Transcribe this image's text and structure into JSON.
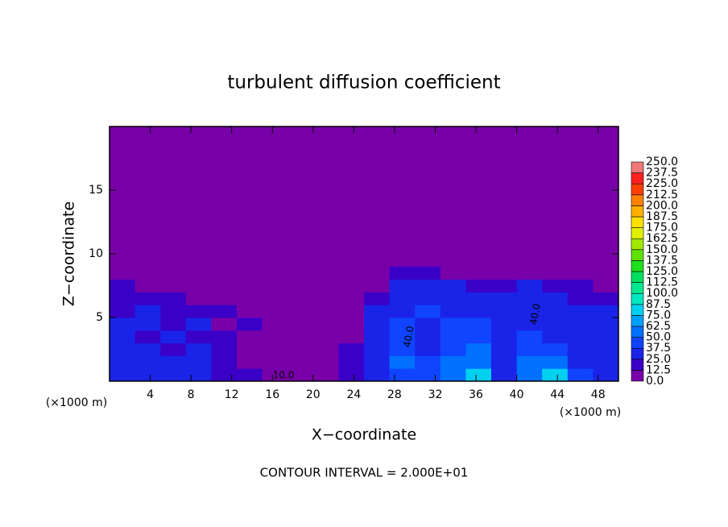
{
  "chart_data": {
    "type": "contour",
    "title": "turbulent diffusion coefficient",
    "xlabel": "X−coordinate",
    "ylabel": "Z−coordinate",
    "xunit": "(×1000 m)",
    "yunit": "(×1000 m)",
    "footer": "CONTOUR INTERVAL = 2.000E+01",
    "xlim": [
      0,
      50
    ],
    "ylim": [
      0,
      20
    ],
    "xticks": [
      4,
      8,
      12,
      16,
      20,
      24,
      28,
      32,
      36,
      40,
      44,
      48
    ],
    "yticks": [
      5,
      10,
      15
    ],
    "x": [
      1.25,
      3.75,
      6.25,
      8.75,
      11.25,
      13.75,
      16.25,
      18.75,
      21.25,
      23.75,
      26.25,
      28.75,
      31.25,
      33.75,
      36.25,
      38.75,
      41.25,
      43.75,
      46.25,
      48.75
    ],
    "y": [
      0.5,
      1.5,
      2.5,
      3.5,
      4.5,
      5.5,
      6.5,
      7.5,
      8.5
    ],
    "values": [
      [
        30,
        28,
        25,
        30,
        20,
        15,
        10,
        8,
        12,
        20,
        30,
        45,
        40,
        60,
        75,
        30,
        60,
        80,
        40,
        35
      ],
      [
        30,
        25,
        30,
        25,
        20,
        12,
        8,
        10,
        10,
        20,
        35,
        50,
        40,
        55,
        60,
        35,
        50,
        60,
        30,
        30
      ],
      [
        25,
        30,
        20,
        25,
        15,
        10,
        8,
        5,
        5,
        15,
        35,
        45,
        35,
        45,
        50,
        35,
        45,
        40,
        30,
        35
      ],
      [
        30,
        20,
        25,
        15,
        20,
        8,
        12,
        5,
        3,
        10,
        30,
        40,
        35,
        40,
        45,
        30,
        40,
        35,
        30,
        30
      ],
      [
        25,
        28,
        15,
        25,
        10,
        15,
        8,
        10,
        3,
        8,
        28,
        40,
        35,
        40,
        40,
        30,
        35,
        30,
        28,
        25
      ],
      [
        20,
        25,
        20,
        15,
        20,
        10,
        5,
        8,
        3,
        12,
        28,
        35,
        38,
        35,
        35,
        30,
        35,
        28,
        25,
        25
      ],
      [
        20,
        15,
        20,
        10,
        5,
        5,
        3,
        3,
        3,
        10,
        20,
        30,
        30,
        35,
        28,
        25,
        30,
        25,
        22,
        20
      ],
      [
        15,
        10,
        8,
        5,
        3,
        3,
        2,
        2,
        2,
        5,
        12,
        25,
        30,
        28,
        20,
        15,
        25,
        20,
        15,
        12
      ],
      [
        2,
        2,
        2,
        1,
        1,
        1,
        1,
        1,
        1,
        2,
        5,
        15,
        18,
        12,
        5,
        3,
        10,
        5,
        3,
        2
      ]
    ],
    "levels": [
      {
        "value": 0,
        "label": "0.0"
      },
      {
        "value": 12.5,
        "label": "12.5"
      },
      {
        "value": 25,
        "label": "25.0"
      },
      {
        "value": 37.5,
        "label": "37.5"
      },
      {
        "value": 50,
        "label": "50.0"
      },
      {
        "value": 62.5,
        "label": "62.5"
      },
      {
        "value": 75,
        "label": "75.0"
      },
      {
        "value": 87.5,
        "label": "87.5"
      },
      {
        "value": 100,
        "label": "100.0"
      },
      {
        "value": 112.5,
        "label": "112.5"
      },
      {
        "value": 125,
        "label": "125.0"
      },
      {
        "value": 137.5,
        "label": "137.5"
      },
      {
        "value": 150,
        "label": "150.0"
      },
      {
        "value": 162.5,
        "label": "162.5"
      },
      {
        "value": 175,
        "label": "175.0"
      },
      {
        "value": 187.5,
        "label": "187.5"
      },
      {
        "value": 200,
        "label": "200.0"
      },
      {
        "value": 212.5,
        "label": "212.5"
      },
      {
        "value": 225,
        "label": "225.0"
      },
      {
        "value": 237.5,
        "label": "237.5"
      },
      {
        "value": 250,
        "label": "250.0"
      }
    ],
    "colors": [
      "#7800a8",
      "#3a00c8",
      "#1a24e8",
      "#1044ff",
      "#0070ff",
      "#00a0ff",
      "#00d0f0",
      "#00e8c0",
      "#00e890",
      "#00e060",
      "#20e020",
      "#60e000",
      "#a0e800",
      "#e0f000",
      "#ffe000",
      "#ffb000",
      "#ff8000",
      "#ff4000",
      "#ff2020",
      "#f07878"
    ],
    "annotations": [
      "40.0",
      "40.0",
      "10.0"
    ]
  }
}
